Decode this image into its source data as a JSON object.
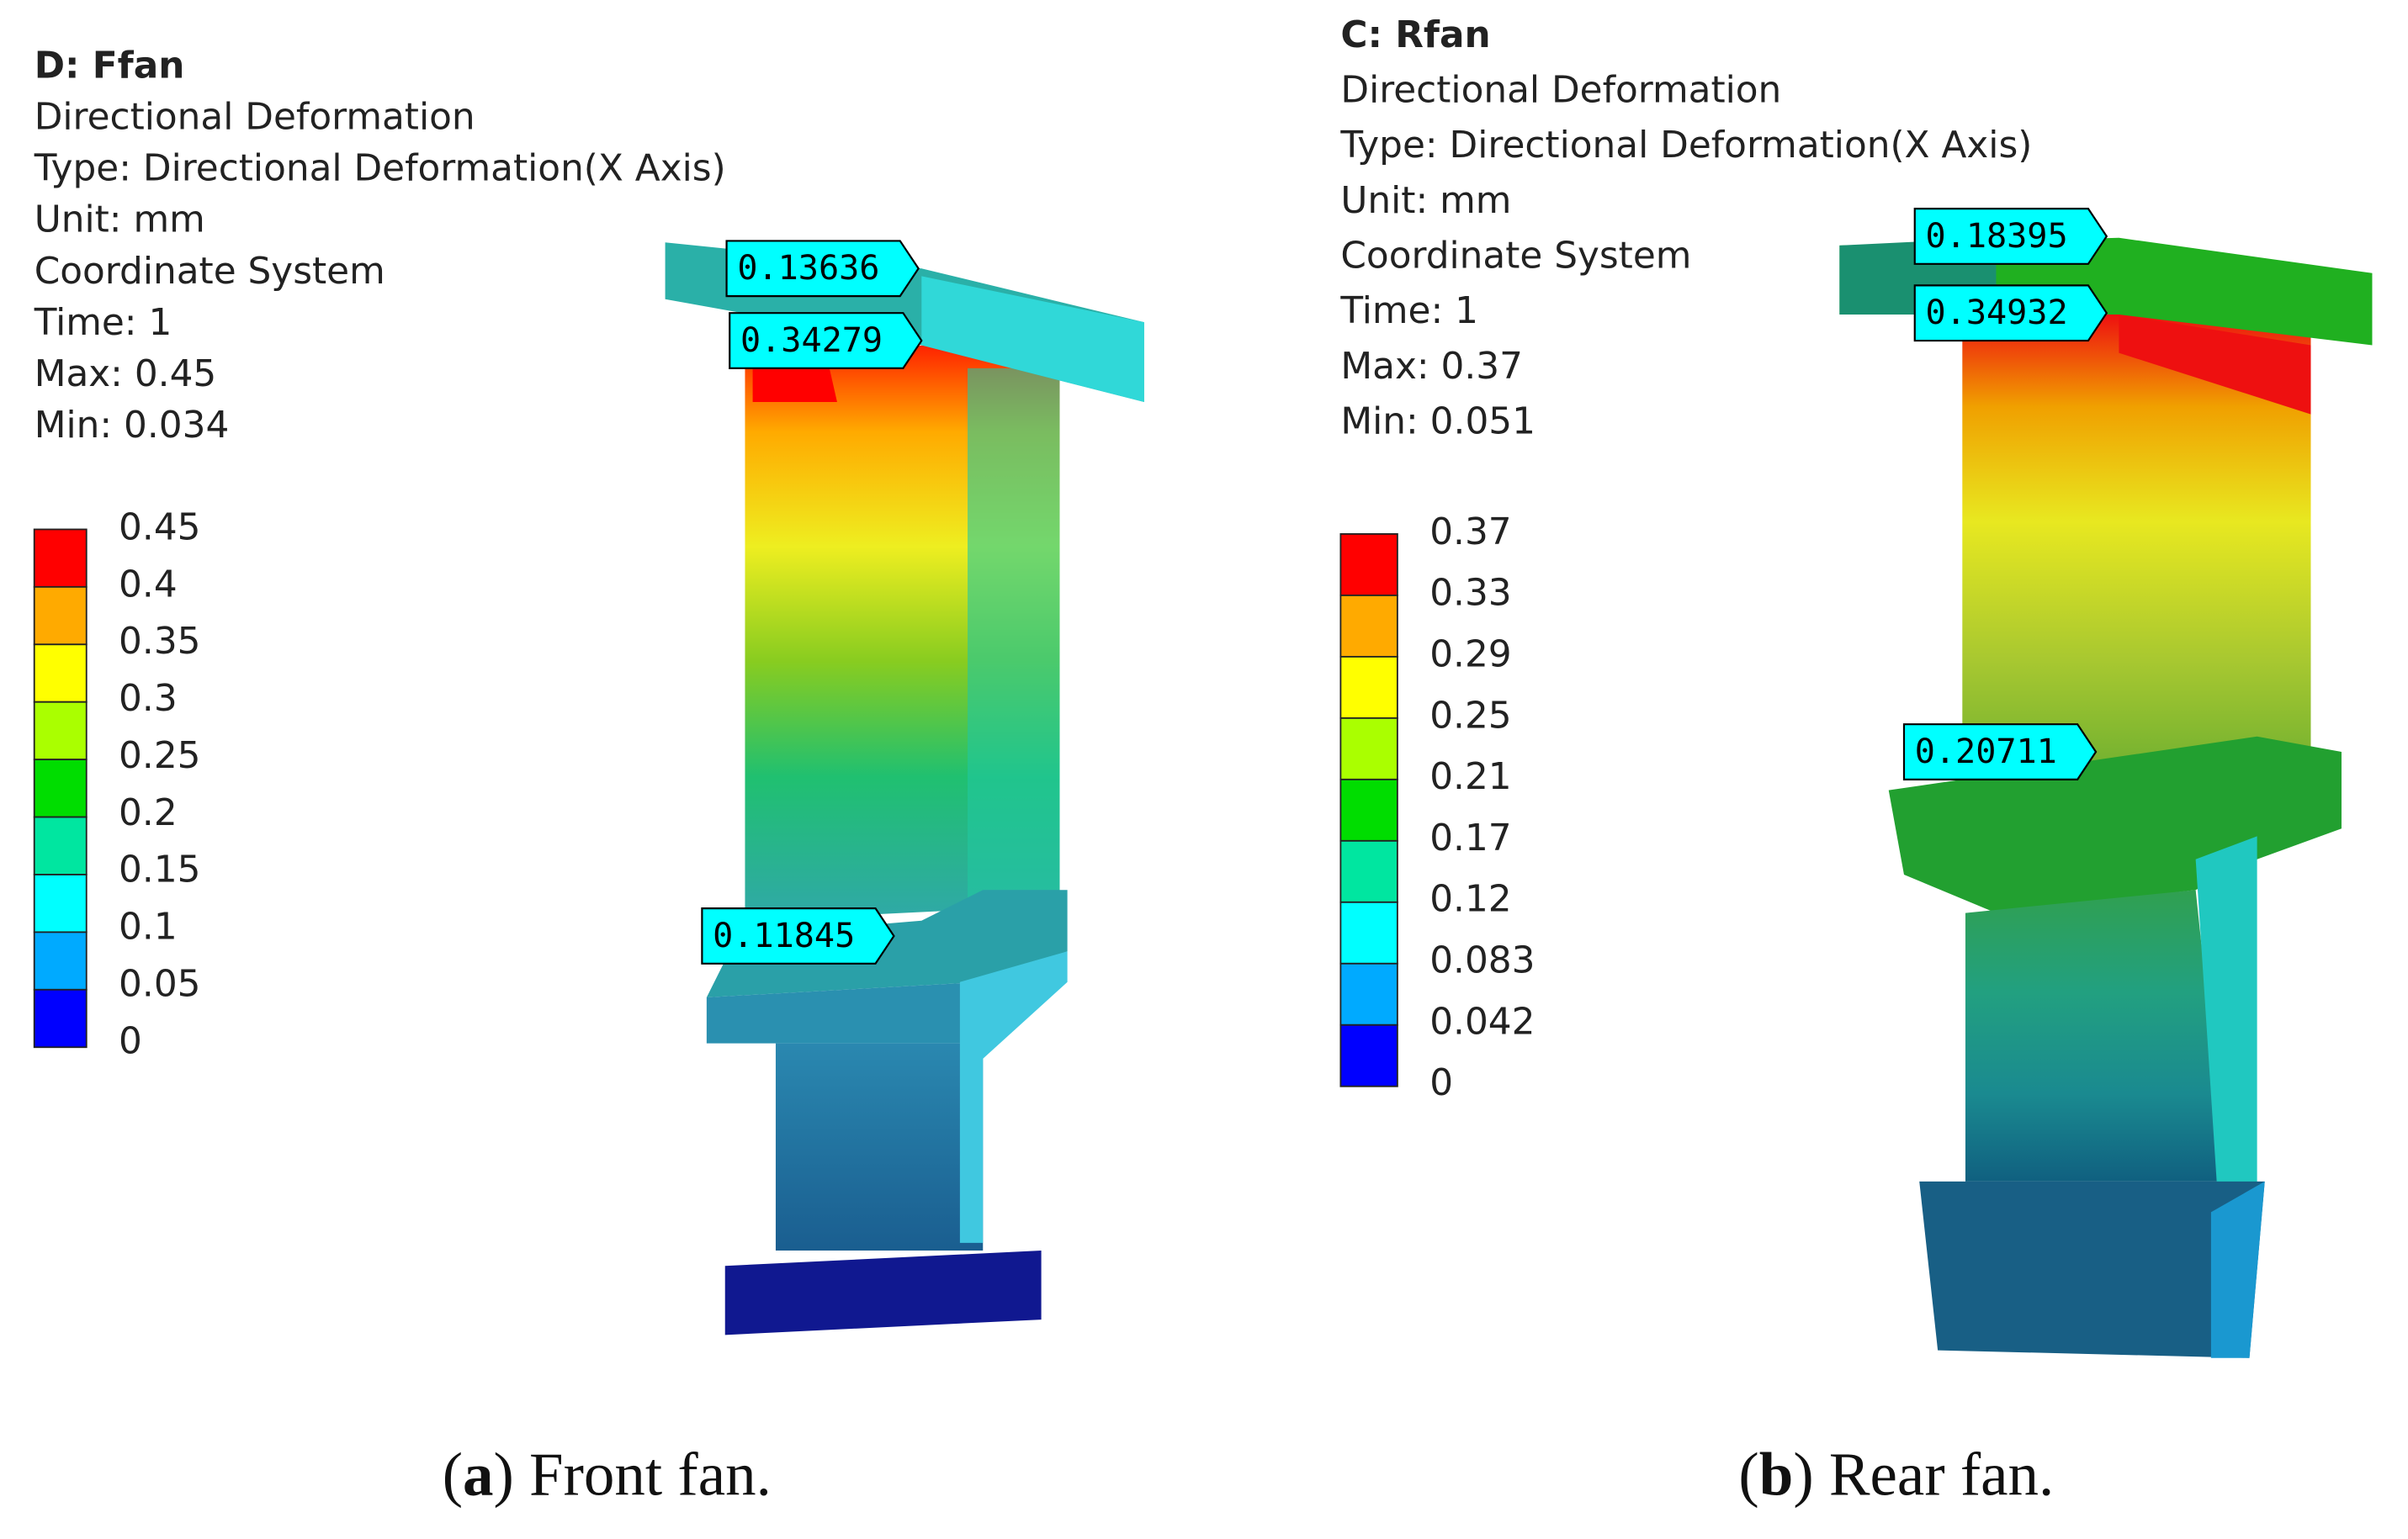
{
  "panels": [
    {
      "header": [
        "D: Ffan",
        "Directional Deformation",
        "Type: Directional Deformation(X Axis)",
        "Unit: mm",
        "Coordinate System",
        "Time: 1",
        "Max: 0.45",
        "Min: 0.034"
      ],
      "legend": [
        "0.45",
        "0.4",
        "0.35",
        "0.3",
        "0.25",
        "0.2",
        "0.15",
        "0.1",
        "0.05",
        "0"
      ],
      "probes": [
        "0.13636",
        "0.34279",
        "0.11845"
      ],
      "caption": [
        "(",
        "a",
        ") Front fan."
      ]
    },
    {
      "header": [
        "C: Rfan",
        "Directional Deformation",
        "Type: Directional Deformation(X Axis)",
        "Unit: mm",
        "Coordinate System",
        "Time: 1",
        "Max: 0.37",
        "Min: 0.051"
      ],
      "legend": [
        "0.37",
        "0.33",
        "0.29",
        "0.25",
        "0.21",
        "0.17",
        "0.12",
        "0.083",
        "0.042",
        "0"
      ],
      "probes": [
        "0.18395",
        "0.34932",
        "0.20711"
      ],
      "caption": [
        "(",
        "b",
        ") Rear fan."
      ]
    }
  ],
  "legend_colors": [
    "#ff0000",
    "#ffaa00",
    "#ffff00",
    "#aaff00",
    "#00dd00",
    "#00e6a0",
    "#00ffff",
    "#00aaff",
    "#0000ff"
  ]
}
